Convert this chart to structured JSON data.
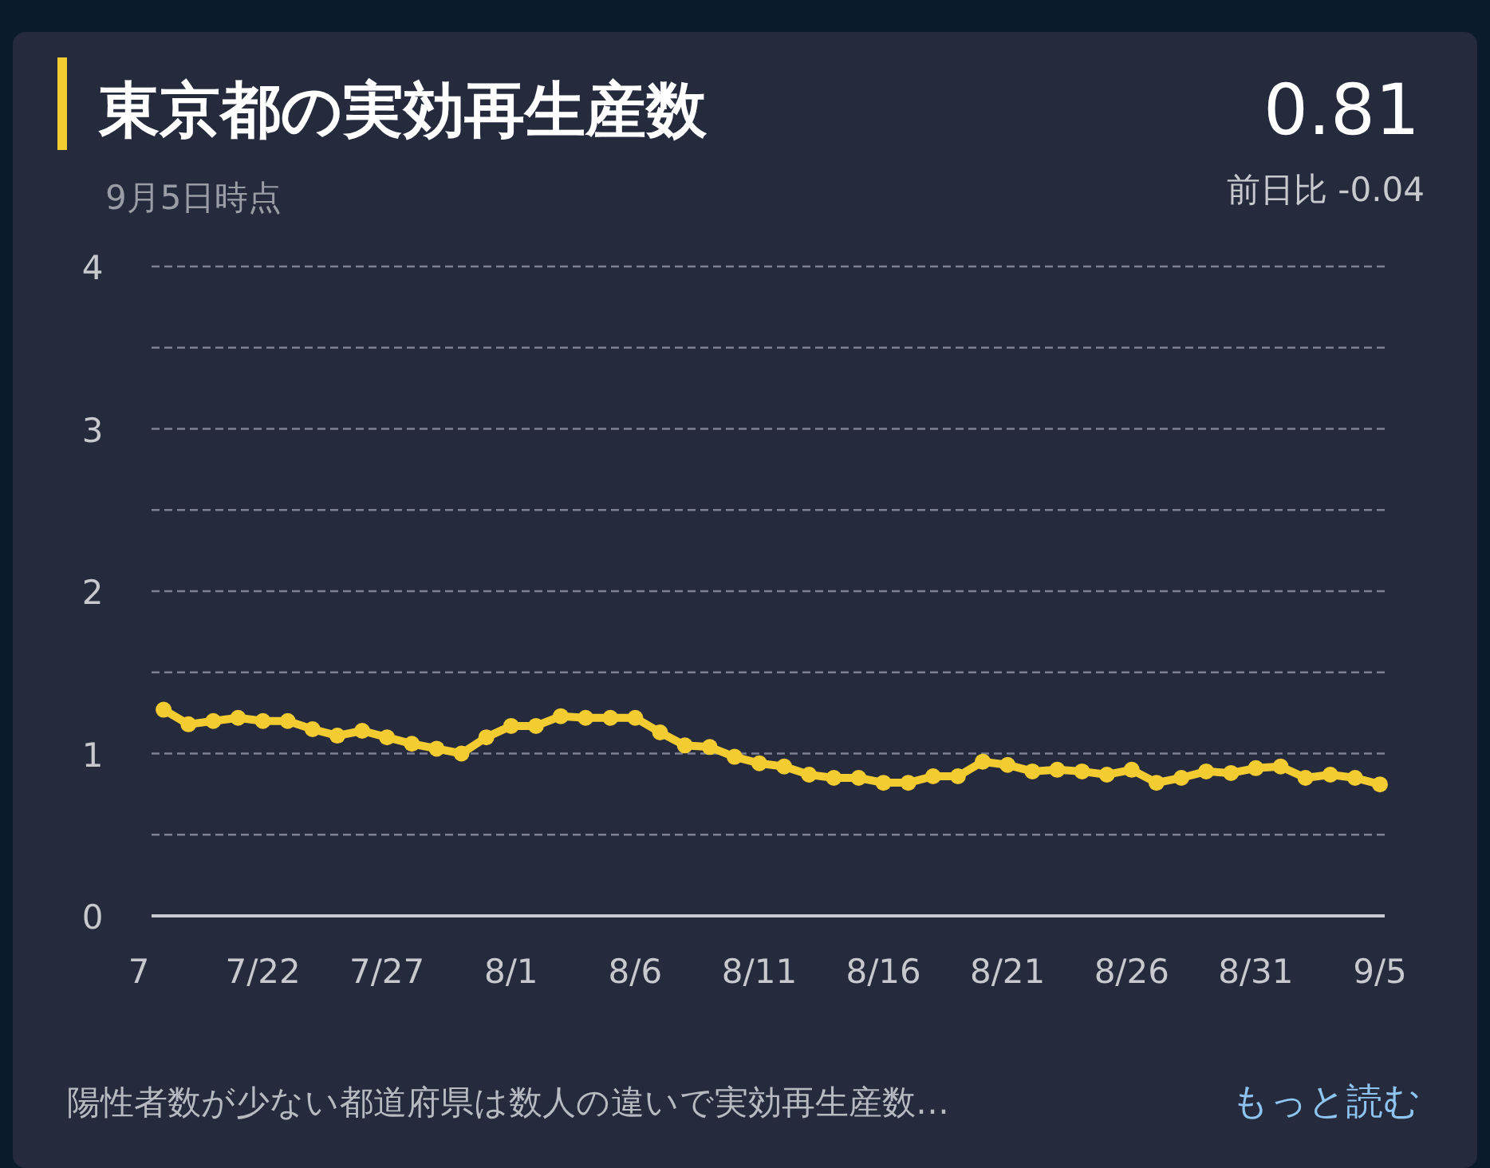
{
  "chart_data": {
    "type": "line",
    "title": "東京都の実効再生産数",
    "subtitle": "9月5日時点",
    "annotations": [
      "0.81",
      "前日比 -0.04",
      "陽性者数が少ない都道府県は数人の違いで実効再生産数…",
      "もっと読む"
    ],
    "x": [
      "--07-18",
      "--07-19",
      "--07-20",
      "--07-21",
      "--07-22",
      "--07-23",
      "--07-24",
      "--07-25",
      "--07-26",
      "--07-27",
      "--07-28",
      "--07-29",
      "--07-30",
      "--07-31",
      "--08-01",
      "--08-02",
      "--08-03",
      "--08-04",
      "--08-05",
      "--08-06",
      "--08-07",
      "--08-08",
      "--08-09",
      "--08-10",
      "--08-11",
      "--08-12",
      "--08-13",
      "--08-14",
      "--08-15",
      "--08-16",
      "--08-17",
      "--08-18",
      "--08-19",
      "--08-20",
      "--08-21",
      "--08-22",
      "--08-23",
      "--08-24",
      "--08-25",
      "--08-26",
      "--08-27",
      "--08-28",
      "--08-29",
      "--08-30",
      "--08-31",
      "--09-01",
      "--09-02",
      "--09-03",
      "--09-04",
      "--09-05"
    ],
    "series": [
      {
        "color": "#f2cc30",
        "values": [
          1.27,
          1.18,
          1.2,
          1.22,
          1.2,
          1.2,
          1.15,
          1.11,
          1.14,
          1.1,
          1.06,
          1.03,
          1.0,
          1.1,
          1.17,
          1.17,
          1.23,
          1.22,
          1.22,
          1.22,
          1.13,
          1.05,
          1.04,
          0.98,
          0.94,
          0.92,
          0.87,
          0.85,
          0.85,
          0.82,
          0.82,
          0.86,
          0.86,
          0.95,
          0.93,
          0.89,
          0.9,
          0.89,
          0.87,
          0.9,
          0.82,
          0.85,
          0.89,
          0.88,
          0.91,
          0.92,
          0.85,
          0.87,
          0.85,
          0.81
        ]
      }
    ],
    "xlim": [
      "--07-17",
      "--09-05"
    ],
    "xticks": [
      {
        "value": "--07-17",
        "label": "7"
      },
      {
        "value": "--07-22",
        "label": "7/22"
      },
      {
        "value": "--07-27",
        "label": "7/27"
      },
      {
        "value": "--08-01",
        "label": "8/1"
      },
      {
        "value": "--08-06",
        "label": "8/6"
      },
      {
        "value": "--08-11",
        "label": "8/11"
      },
      {
        "value": "--08-16",
        "label": "8/16"
      },
      {
        "value": "--08-21",
        "label": "8/21"
      },
      {
        "value": "--08-26",
        "label": "8/26"
      },
      {
        "value": "--08-31",
        "label": "8/31"
      },
      {
        "value": "--09-05",
        "label": "9/5"
      }
    ],
    "ylim": [
      0,
      4
    ],
    "yticks": [
      0,
      {
        "value": 0.5,
        "label": null
      },
      1,
      {
        "value": 1.5,
        "label": null
      },
      2,
      {
        "value": 2.5,
        "label": null
      },
      3,
      {
        "value": 3.5,
        "label": null
      },
      4
    ],
    "grid": "y",
    "marker": "circle",
    "line_style": "solid"
  }
}
